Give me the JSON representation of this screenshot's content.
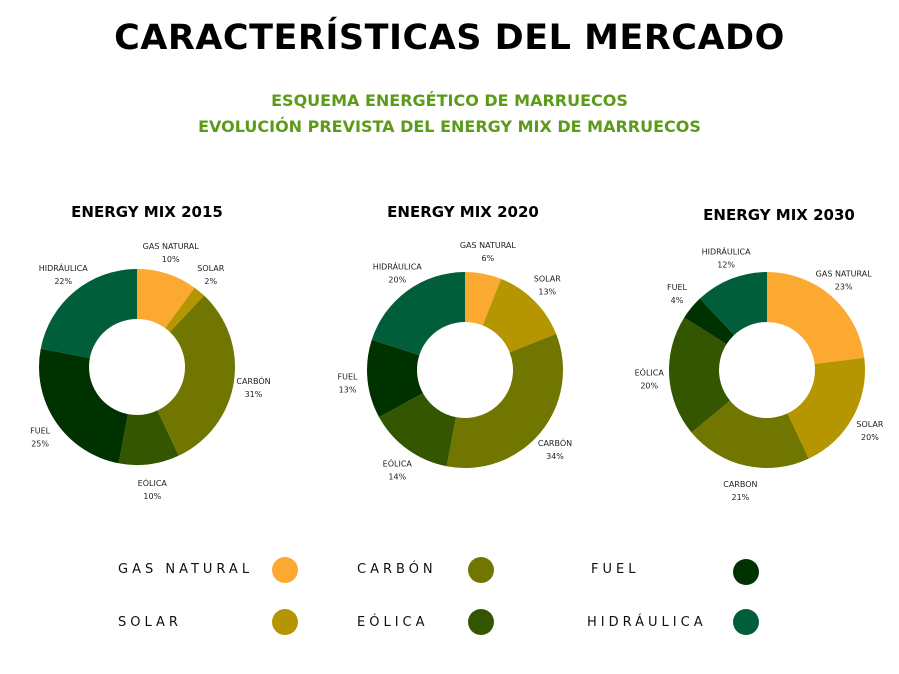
{
  "header": {
    "title": "CARACTERÍSTICAS DEL MERCADO",
    "subtitle1": "ESQUEMA ENERGÉTICO DE MARRUECOS",
    "subtitle2": "EVOLUCIÓN PREVISTA DEL ENERGY MIX DE MARRUECOS"
  },
  "colors": {
    "gas": "#FBA931",
    "solar": "#B59500",
    "carbon": "#707600",
    "eolica": "#345600",
    "fuel": "#003200",
    "hidraulica": "#005E3A"
  },
  "chart_data": [
    {
      "type": "pie",
      "title": "ENERGY MIX 2015",
      "slices": [
        {
          "label": "GAS NATURAL",
          "value": 10,
          "key": "gas"
        },
        {
          "label": "SOLAR",
          "value": 2,
          "key": "solar"
        },
        {
          "label": "CARBÓN",
          "value": 31,
          "key": "carbon"
        },
        {
          "label": "EÓLICA",
          "value": 10,
          "key": "eolica"
        },
        {
          "label": "FUEL",
          "value": 25,
          "key": "fuel"
        },
        {
          "label": "HIDRÁULICA",
          "value": 22,
          "key": "hidraulica"
        }
      ]
    },
    {
      "type": "pie",
      "title": "ENERGY MIX 2020",
      "slices": [
        {
          "label": "GAS NATURAL",
          "value": 6,
          "key": "gas"
        },
        {
          "label": "SOLAR",
          "value": 13,
          "key": "solar"
        },
        {
          "label": "CARBÓN",
          "value": 34,
          "key": "carbon"
        },
        {
          "label": "EÓLICA",
          "value": 14,
          "key": "eolica"
        },
        {
          "label": "FUEL",
          "value": 13,
          "key": "fuel"
        },
        {
          "label": "HIDRÁULICA",
          "value": 20,
          "key": "hidraulica"
        }
      ]
    },
    {
      "type": "pie",
      "title": "ENERGY MIX 2030",
      "slices": [
        {
          "label": "GAS NATURAL",
          "value": 23,
          "key": "gas"
        },
        {
          "label": "SOLAR",
          "value": 20,
          "key": "solar"
        },
        {
          "label": "CARBON",
          "value": 21,
          "key": "carbon"
        },
        {
          "label": "EÓLICA",
          "value": 20,
          "key": "eolica"
        },
        {
          "label": "FUEL",
          "value": 4,
          "key": "fuel"
        },
        {
          "label": "HIDRÁULICA",
          "value": 12,
          "key": "hidraulica"
        }
      ]
    }
  ],
  "legend": [
    {
      "label": "GAS NATURAL",
      "key": "gas"
    },
    {
      "label": "CARBÓN",
      "key": "carbon"
    },
    {
      "label": "FUEL",
      "key": "fuel"
    },
    {
      "label": "SOLAR",
      "key": "solar"
    },
    {
      "label": "EÓLICA",
      "key": "eolica"
    },
    {
      "label": "HIDRÁULICA",
      "key": "hidraulica"
    }
  ]
}
